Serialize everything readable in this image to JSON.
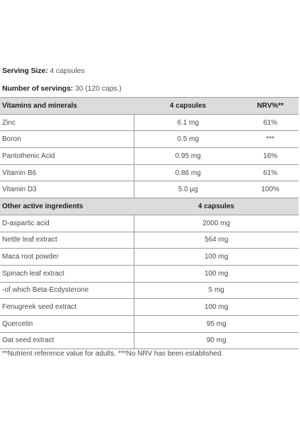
{
  "serving": {
    "size_label": "Serving Size:",
    "size_value": "4 capsules",
    "servings_label": "Number of servings:",
    "servings_value": "30 (120 caps.)"
  },
  "vitamins": {
    "header": {
      "name": "Vitamins and minerals",
      "amount": "4 capsules",
      "nrv": "NRV%**"
    },
    "rows": [
      {
        "name": "Zinc",
        "amount": "6.1 mg",
        "nrv": "61%"
      },
      {
        "name": "Boron",
        "amount": "0.5 mg",
        "nrv": "***"
      },
      {
        "name": "Pantothenic Acid",
        "amount": "0.95 mg",
        "nrv": "16%"
      },
      {
        "name": "Vitamin B6",
        "amount": "0.86 mg",
        "nrv": "61%"
      },
      {
        "name": "Vitamin D3",
        "amount": "5.0 µg",
        "nrv": "100%"
      }
    ]
  },
  "actives": {
    "header": {
      "name": "Other active ingredients",
      "amount": "4 capsules"
    },
    "rows": [
      {
        "name": "D-aspartic acid",
        "amount": "2000 mg"
      },
      {
        "name": "Nettle leaf extract",
        "amount": "564 mg"
      },
      {
        "name": "Maca root powder",
        "amount": "100 mg"
      },
      {
        "name": "Spinach leaf extract",
        "amount": "100 mg"
      },
      {
        "name": "-of which Beta-Ecdysterone",
        "amount": "5 mg"
      },
      {
        "name": "Fenugreek seed extract",
        "amount": "100 mg"
      },
      {
        "name": "Quercetin",
        "amount": "95 mg"
      },
      {
        "name": "Oat seed extract",
        "amount": "90 mg"
      }
    ]
  },
  "footnote": "**Nutrient reference value for adults. ***No NRV has been established."
}
